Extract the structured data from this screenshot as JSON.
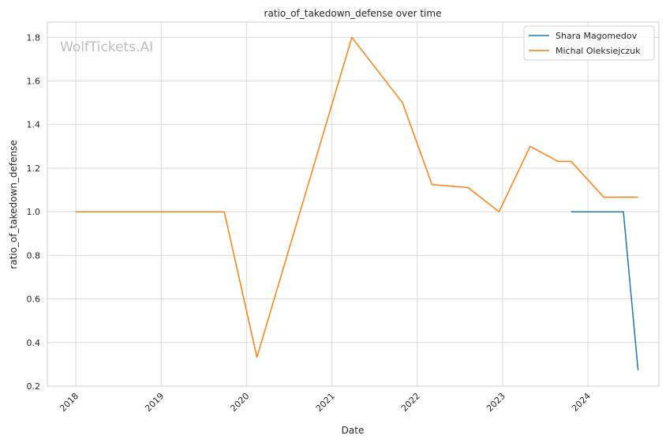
{
  "chart_data": {
    "type": "line",
    "title": "ratio_of_takedown_defense over time",
    "xlabel": "Date",
    "ylabel": "ratio_of_takedown_defense",
    "watermark": "WolfTickets.AI",
    "ylim": [
      0.2,
      1.87
    ],
    "xlim": [
      "2017-09-01",
      "2024-10-31"
    ],
    "x_ticks": [
      "2018",
      "2019",
      "2020",
      "2021",
      "2022",
      "2023",
      "2024"
    ],
    "y_ticks": [
      "0.2",
      "0.4",
      "0.6",
      "0.8",
      "1.0",
      "1.2",
      "1.4",
      "1.6",
      "1.8"
    ],
    "grid": true,
    "legend_position": "top-right",
    "series": [
      {
        "name": "Shara Magomedov",
        "color": "#1f77b4",
        "points": [
          {
            "x": "2023-10-21",
            "y": 1.0
          },
          {
            "x": "2024-06-01",
            "y": 1.0
          },
          {
            "x": "2024-08-03",
            "y": 0.273
          }
        ]
      },
      {
        "name": "Michal Oleksiejczuk",
        "color": "#ff7f0e",
        "points": [
          {
            "x": "2017-12-30",
            "y": 1.0
          },
          {
            "x": "2019-09-28",
            "y": 1.0
          },
          {
            "x": "2020-02-15",
            "y": 0.333
          },
          {
            "x": "2021-03-27",
            "y": 1.8
          },
          {
            "x": "2021-10-30",
            "y": 1.5
          },
          {
            "x": "2022-03-05",
            "y": 1.125
          },
          {
            "x": "2022-08-06",
            "y": 1.111
          },
          {
            "x": "2022-12-17",
            "y": 1.0
          },
          {
            "x": "2023-04-29",
            "y": 1.3
          },
          {
            "x": "2023-08-26",
            "y": 1.231
          },
          {
            "x": "2023-10-21",
            "y": 1.231
          },
          {
            "x": "2024-03-09",
            "y": 1.067
          },
          {
            "x": "2024-08-03",
            "y": 1.067
          }
        ]
      }
    ]
  }
}
